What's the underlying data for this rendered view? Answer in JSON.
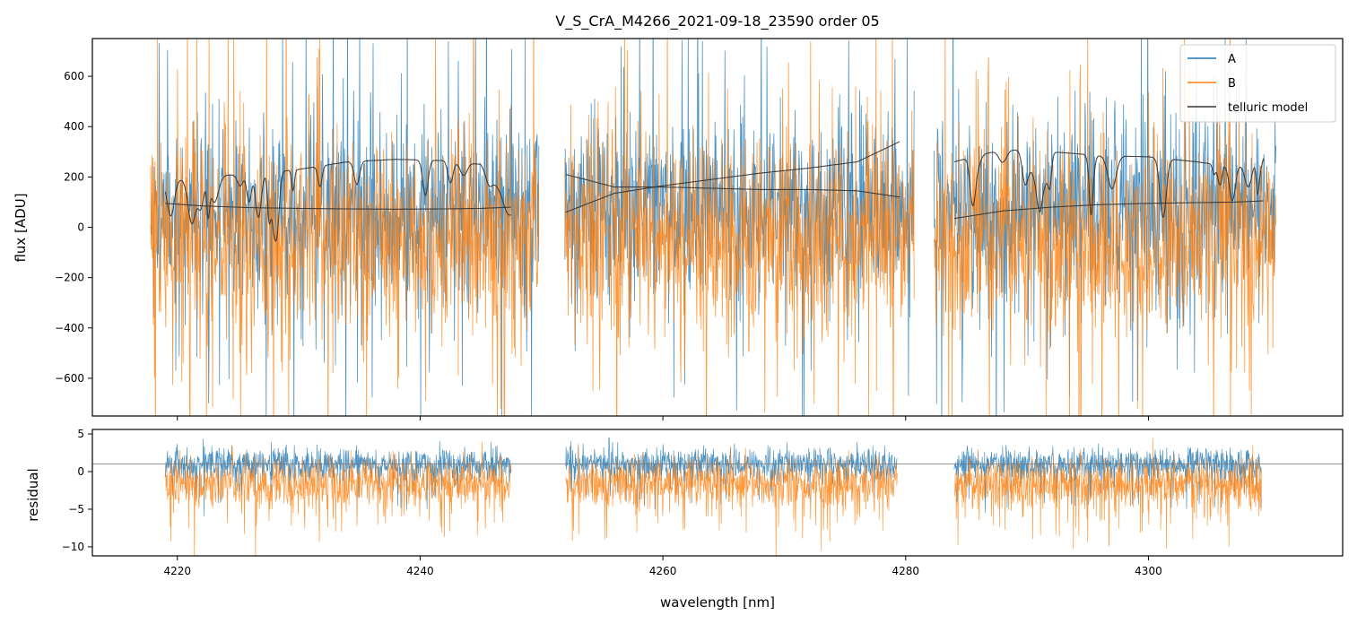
{
  "chart_data": [
    {
      "type": "line",
      "title": "V_S_CrA_M4266_2021-09-18_23590  order 05",
      "xlabel": "",
      "ylabel": "flux [ADU]",
      "xlim": [
        4213.0,
        4316.0
      ],
      "ylim": [
        -750,
        750
      ],
      "yticks": [
        600,
        400,
        200,
        0,
        -200,
        -400,
        -600
      ],
      "ytick_labels": [
        "600",
        "400",
        "200",
        "0",
        "−200",
        "−400",
        "−600"
      ],
      "xticks": [
        4220,
        4240,
        4260,
        4280,
        4300
      ],
      "legend": {
        "placement": "top-right",
        "entries": [
          "A",
          "B",
          "telluric model"
        ]
      },
      "series": [
        {
          "name": "A",
          "color": "#1f77b4",
          "x_range": [
            4217.8,
            4310.5
          ],
          "gaps": [
            [
              4249.8,
              4251.9
            ],
            [
              4280.7,
              4282.3
            ]
          ],
          "typical_center": 60,
          "typical_spread": 330
        },
        {
          "name": "B",
          "color": "#ff7f0e",
          "x_range": [
            4217.8,
            4310.5
          ],
          "gaps": [
            [
              4249.8,
              4251.9
            ],
            [
              4280.7,
              4282.3
            ]
          ],
          "typical_center": -50,
          "typical_spread": 380
        },
        {
          "name": "telluric model",
          "color": "#333333",
          "segments": [
            {
              "x": [
                4219,
                4222,
                4226,
                4230,
                4234,
                4238,
                4242,
                4245,
                4247.5
              ],
              "upper": [
                180,
                205,
                210,
                230,
                260,
                270,
                265,
                250,
                85
              ],
              "lower": [
                95,
                85,
                78,
                75,
                73,
                72,
                73,
                75,
                80
              ]
            },
            {
              "x": [
                4252,
                4256,
                4260,
                4264,
                4268,
                4272,
                4276,
                4279.5
              ],
              "a": [
                60,
                135,
                165,
                190,
                215,
                235,
                260,
                340
              ],
              "b": [
                210,
                160,
                160,
                155,
                150,
                150,
                145,
                120
              ]
            },
            {
              "x": [
                4284,
                4288,
                4292,
                4296,
                4300,
                4304,
                4307,
                4309.5
              ],
              "upper": [
                260,
                310,
                300,
                285,
                280,
                260,
                240,
                285
              ],
              "lower": [
                35,
                65,
                80,
                90,
                95,
                98,
                100,
                105
              ]
            }
          ]
        }
      ]
    },
    {
      "type": "line",
      "title": "",
      "xlabel": "wavelength [nm]",
      "ylabel": "residual",
      "xlim": [
        4213.0,
        4316.0
      ],
      "ylim": [
        -11.2,
        5.6
      ],
      "yticks": [
        5,
        0,
        -5,
        -10
      ],
      "ytick_labels": [
        "5",
        "0",
        "−5",
        "−10"
      ],
      "xticks": [
        4220,
        4240,
        4260,
        4280,
        4300
      ],
      "xtick_labels": [
        "4220",
        "4240",
        "4260",
        "4280",
        "4300"
      ],
      "reference_line": 1.0,
      "series": [
        {
          "name": "A",
          "color": "#1f77b4",
          "segments": [
            [
              4219.0,
              4247.5
            ],
            [
              4252.0,
              4279.3
            ],
            [
              4284.0,
              4309.3
            ]
          ],
          "typical_center": 1.0,
          "typical_spread": 2.0
        },
        {
          "name": "B",
          "color": "#ff7f0e",
          "segments": [
            [
              4219.0,
              4247.5
            ],
            [
              4252.0,
              4279.3
            ],
            [
              4284.0,
              4309.3
            ]
          ],
          "typical_center": -1.5,
          "typical_spread": 3.0
        }
      ]
    }
  ]
}
